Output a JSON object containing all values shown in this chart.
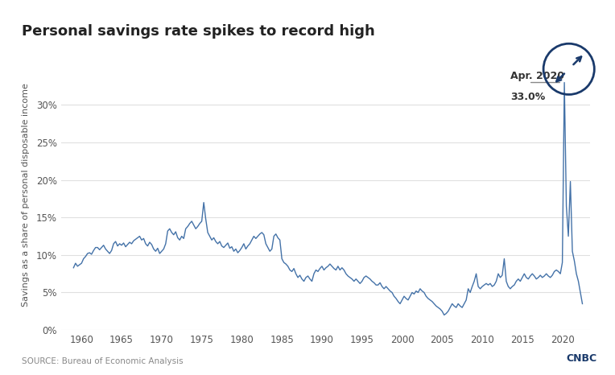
{
  "title": "Personal savings rate spikes to record high",
  "ylabel": "Savings as a share of personal disposable income",
  "source": "SOURCE: Bureau of Economic Analysis",
  "line_color": "#4472a8",
  "background_color": "#ffffff",
  "grid_color": "#e0e0e0",
  "top_bar_color": "#1a3a6b",
  "circle_color": "#1a3a6b",
  "annotation_text_line1": "Apr. 2020",
  "annotation_text_line2": "33.0%",
  "ylim": [
    0,
    36
  ],
  "yticks": [
    0,
    5,
    10,
    15,
    20,
    25,
    30
  ],
  "ytick_labels": [
    "0%",
    "5%",
    "10%",
    "15%",
    "20%",
    "25%",
    "30%"
  ],
  "xticks": [
    1960,
    1965,
    1970,
    1975,
    1980,
    1985,
    1990,
    1995,
    2000,
    2005,
    2010,
    2015,
    2020
  ],
  "xlim": [
    1957.5,
    2023.5
  ],
  "data": [
    [
      1959.0,
      8.3
    ],
    [
      1959.25,
      8.9
    ],
    [
      1959.5,
      8.5
    ],
    [
      1959.75,
      8.7
    ],
    [
      1960.0,
      8.9
    ],
    [
      1960.25,
      9.5
    ],
    [
      1960.5,
      9.8
    ],
    [
      1960.75,
      10.2
    ],
    [
      1961.0,
      10.3
    ],
    [
      1961.25,
      10.1
    ],
    [
      1961.5,
      10.6
    ],
    [
      1961.75,
      11.0
    ],
    [
      1962.0,
      11.0
    ],
    [
      1962.25,
      10.7
    ],
    [
      1962.5,
      11.0
    ],
    [
      1962.75,
      11.3
    ],
    [
      1963.0,
      10.8
    ],
    [
      1963.25,
      10.5
    ],
    [
      1963.5,
      10.2
    ],
    [
      1963.75,
      10.6
    ],
    [
      1964.0,
      11.5
    ],
    [
      1964.25,
      11.8
    ],
    [
      1964.5,
      11.2
    ],
    [
      1964.75,
      11.5
    ],
    [
      1965.0,
      11.3
    ],
    [
      1965.25,
      11.6
    ],
    [
      1965.5,
      11.1
    ],
    [
      1965.75,
      11.4
    ],
    [
      1966.0,
      11.7
    ],
    [
      1966.25,
      11.5
    ],
    [
      1966.5,
      11.9
    ],
    [
      1966.75,
      12.1
    ],
    [
      1967.0,
      12.3
    ],
    [
      1967.25,
      12.5
    ],
    [
      1967.5,
      12.0
    ],
    [
      1967.75,
      12.2
    ],
    [
      1968.0,
      11.5
    ],
    [
      1968.25,
      11.2
    ],
    [
      1968.5,
      11.7
    ],
    [
      1968.75,
      11.4
    ],
    [
      1969.0,
      10.8
    ],
    [
      1969.25,
      10.5
    ],
    [
      1969.5,
      10.9
    ],
    [
      1969.75,
      10.2
    ],
    [
      1970.0,
      10.5
    ],
    [
      1970.25,
      10.8
    ],
    [
      1970.5,
      11.5
    ],
    [
      1970.75,
      13.2
    ],
    [
      1971.0,
      13.5
    ],
    [
      1971.25,
      13.0
    ],
    [
      1971.5,
      12.7
    ],
    [
      1971.75,
      13.1
    ],
    [
      1972.0,
      12.3
    ],
    [
      1972.25,
      12.0
    ],
    [
      1972.5,
      12.5
    ],
    [
      1972.75,
      12.2
    ],
    [
      1973.0,
      13.5
    ],
    [
      1973.25,
      13.8
    ],
    [
      1973.5,
      14.2
    ],
    [
      1973.75,
      14.5
    ],
    [
      1974.0,
      14.0
    ],
    [
      1974.25,
      13.5
    ],
    [
      1974.5,
      13.8
    ],
    [
      1974.75,
      14.2
    ],
    [
      1975.0,
      14.5
    ],
    [
      1975.25,
      17.0
    ],
    [
      1975.5,
      14.8
    ],
    [
      1975.75,
      13.0
    ],
    [
      1976.0,
      12.5
    ],
    [
      1976.25,
      12.0
    ],
    [
      1976.5,
      12.3
    ],
    [
      1976.75,
      11.8
    ],
    [
      1977.0,
      11.5
    ],
    [
      1977.25,
      11.8
    ],
    [
      1977.5,
      11.2
    ],
    [
      1977.75,
      11.0
    ],
    [
      1978.0,
      11.3
    ],
    [
      1978.25,
      11.6
    ],
    [
      1978.5,
      10.9
    ],
    [
      1978.75,
      11.1
    ],
    [
      1979.0,
      10.5
    ],
    [
      1979.25,
      10.8
    ],
    [
      1979.5,
      10.3
    ],
    [
      1979.75,
      10.6
    ],
    [
      1980.0,
      11.0
    ],
    [
      1980.25,
      11.5
    ],
    [
      1980.5,
      10.8
    ],
    [
      1980.75,
      11.2
    ],
    [
      1981.0,
      11.5
    ],
    [
      1981.25,
      12.0
    ],
    [
      1981.5,
      12.5
    ],
    [
      1981.75,
      12.2
    ],
    [
      1982.0,
      12.5
    ],
    [
      1982.25,
      12.8
    ],
    [
      1982.5,
      13.0
    ],
    [
      1982.75,
      12.7
    ],
    [
      1983.0,
      11.5
    ],
    [
      1983.25,
      11.0
    ],
    [
      1983.5,
      10.5
    ],
    [
      1983.75,
      10.8
    ],
    [
      1984.0,
      12.5
    ],
    [
      1984.25,
      12.8
    ],
    [
      1984.5,
      12.3
    ],
    [
      1984.75,
      12.0
    ],
    [
      1985.0,
      9.5
    ],
    [
      1985.25,
      9.0
    ],
    [
      1985.5,
      8.8
    ],
    [
      1985.75,
      8.5
    ],
    [
      1986.0,
      8.0
    ],
    [
      1986.25,
      7.8
    ],
    [
      1986.5,
      8.2
    ],
    [
      1986.75,
      7.5
    ],
    [
      1987.0,
      7.0
    ],
    [
      1987.25,
      7.3
    ],
    [
      1987.5,
      6.8
    ],
    [
      1987.75,
      6.5
    ],
    [
      1988.0,
      7.0
    ],
    [
      1988.25,
      7.2
    ],
    [
      1988.5,
      6.8
    ],
    [
      1988.75,
      6.5
    ],
    [
      1989.0,
      7.5
    ],
    [
      1989.25,
      8.0
    ],
    [
      1989.5,
      7.8
    ],
    [
      1989.75,
      8.2
    ],
    [
      1990.0,
      8.5
    ],
    [
      1990.25,
      8.0
    ],
    [
      1990.5,
      8.3
    ],
    [
      1990.75,
      8.5
    ],
    [
      1991.0,
      8.8
    ],
    [
      1991.25,
      8.5
    ],
    [
      1991.5,
      8.2
    ],
    [
      1991.75,
      8.0
    ],
    [
      1992.0,
      8.5
    ],
    [
      1992.25,
      8.0
    ],
    [
      1992.5,
      8.3
    ],
    [
      1992.75,
      8.0
    ],
    [
      1993.0,
      7.5
    ],
    [
      1993.25,
      7.2
    ],
    [
      1993.5,
      7.0
    ],
    [
      1993.75,
      6.8
    ],
    [
      1994.0,
      6.5
    ],
    [
      1994.25,
      6.8
    ],
    [
      1994.5,
      6.5
    ],
    [
      1994.75,
      6.2
    ],
    [
      1995.0,
      6.5
    ],
    [
      1995.25,
      7.0
    ],
    [
      1995.5,
      7.2
    ],
    [
      1995.75,
      7.0
    ],
    [
      1996.0,
      6.8
    ],
    [
      1996.25,
      6.5
    ],
    [
      1996.5,
      6.3
    ],
    [
      1996.75,
      6.0
    ],
    [
      1997.0,
      6.0
    ],
    [
      1997.25,
      6.3
    ],
    [
      1997.5,
      5.8
    ],
    [
      1997.75,
      5.5
    ],
    [
      1998.0,
      5.8
    ],
    [
      1998.25,
      5.5
    ],
    [
      1998.5,
      5.2
    ],
    [
      1998.75,
      5.0
    ],
    [
      1999.0,
      4.5
    ],
    [
      1999.25,
      4.2
    ],
    [
      1999.5,
      3.8
    ],
    [
      1999.75,
      3.5
    ],
    [
      2000.0,
      4.0
    ],
    [
      2000.25,
      4.5
    ],
    [
      2000.5,
      4.2
    ],
    [
      2000.75,
      4.0
    ],
    [
      2001.0,
      4.5
    ],
    [
      2001.25,
      5.0
    ],
    [
      2001.5,
      4.8
    ],
    [
      2001.75,
      5.2
    ],
    [
      2002.0,
      5.0
    ],
    [
      2002.25,
      5.5
    ],
    [
      2002.5,
      5.2
    ],
    [
      2002.75,
      5.0
    ],
    [
      2003.0,
      4.5
    ],
    [
      2003.25,
      4.2
    ],
    [
      2003.5,
      4.0
    ],
    [
      2003.75,
      3.8
    ],
    [
      2004.0,
      3.5
    ],
    [
      2004.25,
      3.2
    ],
    [
      2004.5,
      3.0
    ],
    [
      2004.75,
      2.8
    ],
    [
      2005.0,
      2.5
    ],
    [
      2005.25,
      2.0
    ],
    [
      2005.5,
      2.2
    ],
    [
      2005.75,
      2.5
    ],
    [
      2006.0,
      3.0
    ],
    [
      2006.25,
      3.5
    ],
    [
      2006.5,
      3.2
    ],
    [
      2006.75,
      3.0
    ],
    [
      2007.0,
      3.5
    ],
    [
      2007.25,
      3.2
    ],
    [
      2007.5,
      3.0
    ],
    [
      2007.75,
      3.5
    ],
    [
      2008.0,
      4.0
    ],
    [
      2008.25,
      5.5
    ],
    [
      2008.5,
      5.0
    ],
    [
      2008.75,
      5.8
    ],
    [
      2009.0,
      6.5
    ],
    [
      2009.25,
      7.5
    ],
    [
      2009.5,
      5.8
    ],
    [
      2009.75,
      5.5
    ],
    [
      2010.0,
      5.8
    ],
    [
      2010.25,
      6.0
    ],
    [
      2010.5,
      6.2
    ],
    [
      2010.75,
      6.0
    ],
    [
      2011.0,
      6.2
    ],
    [
      2011.25,
      5.8
    ],
    [
      2011.5,
      6.0
    ],
    [
      2011.75,
      6.5
    ],
    [
      2012.0,
      7.5
    ],
    [
      2012.25,
      7.0
    ],
    [
      2012.5,
      7.3
    ],
    [
      2012.75,
      9.5
    ],
    [
      2013.0,
      6.5
    ],
    [
      2013.25,
      5.8
    ],
    [
      2013.5,
      5.5
    ],
    [
      2013.75,
      5.8
    ],
    [
      2014.0,
      6.0
    ],
    [
      2014.25,
      6.5
    ],
    [
      2014.5,
      6.8
    ],
    [
      2014.75,
      6.5
    ],
    [
      2015.0,
      7.0
    ],
    [
      2015.25,
      7.5
    ],
    [
      2015.5,
      7.0
    ],
    [
      2015.75,
      6.8
    ],
    [
      2016.0,
      7.2
    ],
    [
      2016.25,
      7.5
    ],
    [
      2016.5,
      7.2
    ],
    [
      2016.75,
      6.8
    ],
    [
      2017.0,
      7.0
    ],
    [
      2017.25,
      7.3
    ],
    [
      2017.5,
      7.0
    ],
    [
      2017.75,
      7.2
    ],
    [
      2018.0,
      7.5
    ],
    [
      2018.25,
      7.2
    ],
    [
      2018.5,
      7.0
    ],
    [
      2018.75,
      7.3
    ],
    [
      2019.0,
      7.8
    ],
    [
      2019.25,
      8.0
    ],
    [
      2019.5,
      7.8
    ],
    [
      2019.75,
      7.5
    ],
    [
      2020.0,
      9.0
    ],
    [
      2020.25,
      33.0
    ],
    [
      2020.5,
      16.5
    ],
    [
      2020.75,
      12.5
    ],
    [
      2021.0,
      19.8
    ],
    [
      2021.25,
      10.5
    ],
    [
      2021.5,
      9.2
    ],
    [
      2021.75,
      7.5
    ],
    [
      2022.0,
      6.5
    ],
    [
      2022.25,
      5.0
    ],
    [
      2022.5,
      3.5
    ]
  ]
}
